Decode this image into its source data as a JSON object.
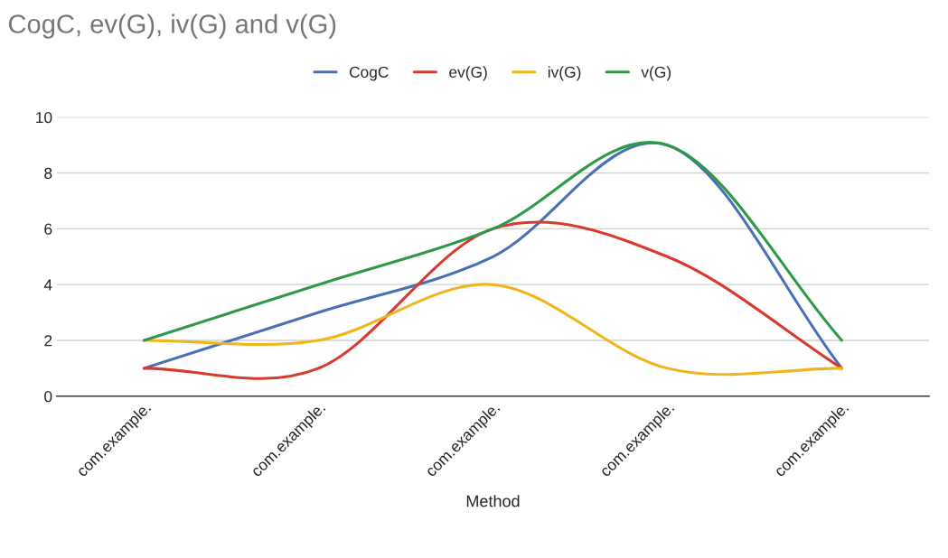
{
  "chart_data": {
    "type": "line",
    "title": "CogC, ev(G), iv(G) and v(G)",
    "xlabel": "Method",
    "categories": [
      "com.example.",
      "com.example.",
      "com.example.",
      "com.example.",
      "com.example."
    ],
    "series": [
      {
        "name": "CogC",
        "color": "#4a6fb5",
        "values": [
          1,
          3,
          5,
          9,
          1
        ]
      },
      {
        "name": "ev(G)",
        "color": "#d93a2f",
        "values": [
          1,
          1,
          6,
          5,
          1
        ]
      },
      {
        "name": "iv(G)",
        "color": "#f2b41b",
        "values": [
          2,
          2,
          4,
          1,
          1
        ]
      },
      {
        "name": "v(G)",
        "color": "#2e9a48",
        "values": [
          2,
          4,
          6,
          9,
          2
        ]
      }
    ],
    "ylim": [
      0,
      10
    ],
    "yticks": [
      0,
      2,
      4,
      6,
      8,
      10
    ],
    "grid": "y",
    "legend": "top",
    "marker": "none",
    "line_style": "solid"
  }
}
